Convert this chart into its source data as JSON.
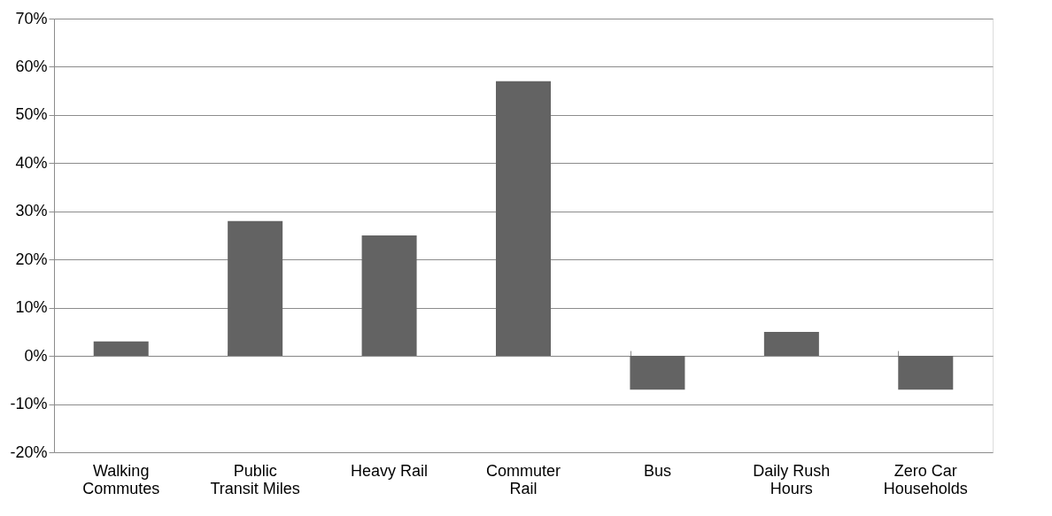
{
  "chart_data": {
    "type": "bar",
    "categories": [
      "Walking Commutes",
      "Public Transit Miles",
      "Heavy Rail",
      "Commuter Rail",
      "Bus",
      "Daily Rush Hours",
      "Zero Car Households"
    ],
    "values": [
      0.03,
      0.28,
      0.25,
      0.57,
      -0.07,
      0.05,
      -0.07
    ],
    "color": "#636363",
    "ylim": [
      -0.2,
      0.7
    ],
    "yticks": [
      {
        "value": -0.2,
        "label": "-20%"
      },
      {
        "value": -0.1,
        "label": "-10%"
      },
      {
        "value": 0,
        "label": "0%"
      },
      {
        "value": 0.1,
        "label": "10%"
      },
      {
        "value": 0.2,
        "label": "20%"
      },
      {
        "value": 0.3,
        "label": "30%"
      },
      {
        "value": 0.4,
        "label": "40%"
      },
      {
        "value": 0.5,
        "label": "50%"
      },
      {
        "value": 0.6,
        "label": "60%"
      },
      {
        "value": 0.7,
        "label": "70%"
      }
    ],
    "grid": "y"
  }
}
